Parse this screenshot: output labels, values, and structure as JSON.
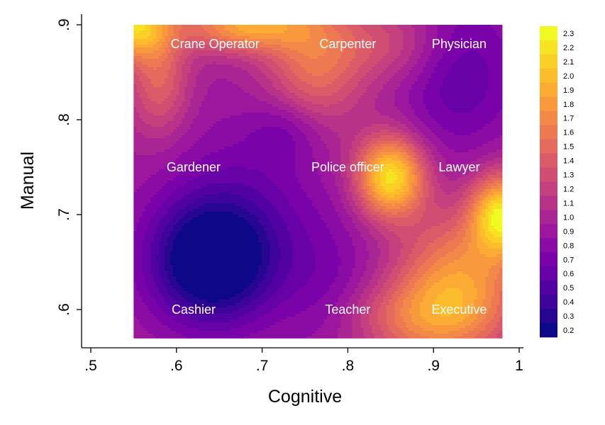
{
  "chart_data": {
    "type": "heatmap",
    "xlabel": "Cognitive",
    "ylabel": "Manual",
    "xlim": [
      0.5,
      1.0
    ],
    "ylim": [
      0.57,
      0.92
    ],
    "x_ticks": [
      {
        "value": 0.5,
        "label": ".5"
      },
      {
        "value": 0.6,
        "label": ".6"
      },
      {
        "value": 0.7,
        "label": ".7"
      },
      {
        "value": 0.8,
        "label": ".8"
      },
      {
        "value": 0.9,
        "label": ".9"
      },
      {
        "value": 1.0,
        "label": "1"
      }
    ],
    "y_ticks": [
      {
        "value": 0.6,
        "label": ".6"
      },
      {
        "value": 0.7,
        "label": ".7"
      },
      {
        "value": 0.8,
        "label": ".8"
      },
      {
        "value": 0.9,
        "label": ".9"
      }
    ],
    "surface_extent": {
      "x": [
        0.55,
        0.98
      ],
      "y": [
        0.57,
        0.9
      ]
    },
    "annotations": [
      {
        "text": "Crane Operator",
        "x": 0.645,
        "y": 0.88
      },
      {
        "text": "Carpenter",
        "x": 0.8,
        "y": 0.88
      },
      {
        "text": "Physician",
        "x": 0.93,
        "y": 0.88
      },
      {
        "text": "Gardener",
        "x": 0.62,
        "y": 0.75
      },
      {
        "text": "Police officer",
        "x": 0.8,
        "y": 0.75
      },
      {
        "text": "Lawyer",
        "x": 0.93,
        "y": 0.75
      },
      {
        "text": "Cashier",
        "x": 0.62,
        "y": 0.6
      },
      {
        "text": "Teacher",
        "x": 0.8,
        "y": 0.6
      },
      {
        "text": "Executive",
        "x": 0.93,
        "y": 0.6
      }
    ],
    "colorbar": {
      "min": 0.2,
      "max": 2.3,
      "step": 0.1,
      "labels": [
        "2.3",
        "2.2",
        "2.1",
        "2.0",
        "1.9",
        "1.8",
        "1.7",
        "1.6",
        "1.5",
        "1.4",
        "1.3",
        "1.2",
        "1.1",
        "1.0",
        "0.9",
        "0.8",
        "0.7",
        "0.6",
        "0.5",
        "0.4",
        "0.3",
        "0.2"
      ]
    },
    "colors": [
      "#0d0887",
      "#3a049a",
      "#5c01a6",
      "#7e03a8",
      "#9c179e",
      "#b52f8c",
      "#cc4778",
      "#de5f65",
      "#ed7953",
      "#f89540",
      "#fdb42f",
      "#fbd524",
      "#f0f921"
    ],
    "surface_features": [
      {
        "x": 0.64,
        "y": 0.65,
        "sx": 0.05,
        "sy": 0.045,
        "amp": -0.9
      },
      {
        "x": 0.68,
        "y": 0.7,
        "sx": 0.07,
        "sy": 0.07,
        "amp": -0.3
      },
      {
        "x": 0.85,
        "y": 0.74,
        "sx": 0.028,
        "sy": 0.03,
        "amp": 1.25
      },
      {
        "x": 0.98,
        "y": 0.7,
        "sx": 0.025,
        "sy": 0.03,
        "amp": 1.2
      },
      {
        "x": 0.93,
        "y": 0.63,
        "sx": 0.05,
        "sy": 0.05,
        "amp": 0.8
      },
      {
        "x": 0.88,
        "y": 0.59,
        "sx": 0.06,
        "sy": 0.03,
        "amp": 0.5
      },
      {
        "x": 0.55,
        "y": 0.9,
        "sx": 0.03,
        "sy": 0.025,
        "amp": 1.1
      },
      {
        "x": 0.68,
        "y": 0.9,
        "sx": 0.05,
        "sy": 0.02,
        "amp": 0.9
      },
      {
        "x": 0.58,
        "y": 0.84,
        "sx": 0.025,
        "sy": 0.04,
        "amp": 0.5
      },
      {
        "x": 0.76,
        "y": 0.86,
        "sx": 0.04,
        "sy": 0.05,
        "amp": 0.6
      },
      {
        "x": 0.85,
        "y": 0.88,
        "sx": 0.05,
        "sy": 0.03,
        "amp": 0.35
      },
      {
        "x": 0.93,
        "y": 0.85,
        "sx": 0.05,
        "sy": 0.06,
        "amp": -0.4
      },
      {
        "x": 0.78,
        "y": 0.62,
        "sx": 0.04,
        "sy": 0.05,
        "amp": -0.2
      },
      {
        "x": 0.73,
        "y": 0.79,
        "sx": 0.03,
        "sy": 0.025,
        "amp": -0.25
      }
    ],
    "surface_base": 0.95
  }
}
